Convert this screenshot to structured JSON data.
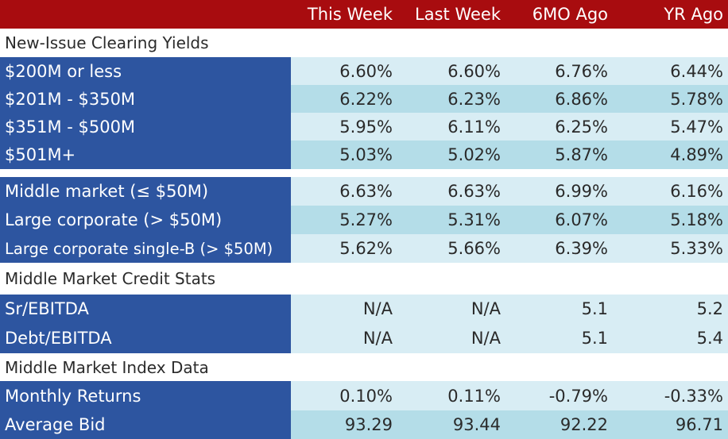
{
  "columns": [
    "This Week",
    "Last Week",
    "6MO Ago",
    "YR Ago"
  ],
  "sections": {
    "clearing_title": "New-Issue Clearing Yields",
    "credit_title": "Middle Market Credit Stats",
    "index_title": "Middle Market Index Data"
  },
  "rows": [
    {
      "label": "$200M or less",
      "values": [
        "6.60%",
        "6.60%",
        "6.76%",
        "6.44%"
      ]
    },
    {
      "label": "$201M - $350M",
      "values": [
        "6.22%",
        "6.23%",
        "6.86%",
        "5.78%"
      ]
    },
    {
      "label": "$351M - $500M",
      "values": [
        "5.95%",
        "6.11%",
        "6.25%",
        "5.47%"
      ]
    },
    {
      "label": "$501M+",
      "values": [
        "5.03%",
        "5.02%",
        "5.87%",
        "4.89%"
      ]
    },
    {
      "label": "Middle market (≤ $50M)",
      "values": [
        "6.63%",
        "6.63%",
        "6.99%",
        "6.16%"
      ]
    },
    {
      "label": "Large corporate (> $50M)",
      "values": [
        "5.27%",
        "5.31%",
        "6.07%",
        "5.18%"
      ]
    },
    {
      "label": "Large corporate single-B (> $50M)",
      "values": [
        "5.62%",
        "5.66%",
        "6.39%",
        "5.33%"
      ]
    },
    {
      "label": "Sr/EBITDA",
      "values": [
        "N/A",
        "N/A",
        "5.1",
        "5.2"
      ]
    },
    {
      "label": "Debt/EBITDA",
      "values": [
        "N/A",
        "N/A",
        "5.1",
        "5.4"
      ]
    },
    {
      "label": "Monthly Returns",
      "values": [
        "0.10%",
        "0.11%",
        "-0.79%",
        "-0.33%"
      ]
    },
    {
      "label": "Average Bid",
      "values": [
        "93.29",
        "93.44",
        "92.22",
        "96.71"
      ]
    }
  ],
  "colors": {
    "header_bg": "#a80c0f",
    "label_bg": "#2d55a0",
    "cell_light": "#d8edf4",
    "cell_dark": "#b4dde8"
  }
}
